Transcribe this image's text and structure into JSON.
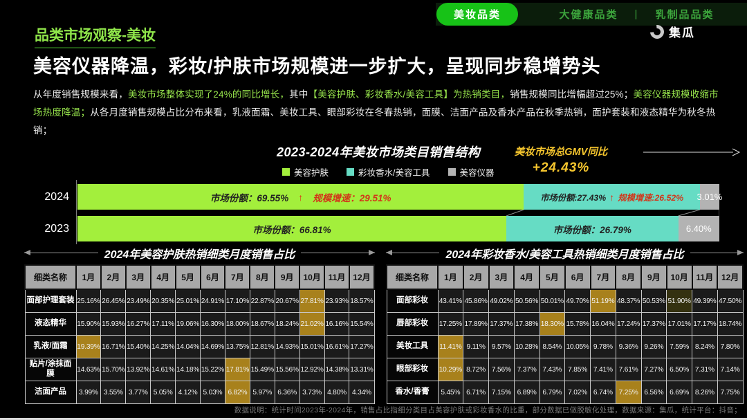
{
  "nav": {
    "active_tab": "美妆品类",
    "tabs": [
      "大健康品类",
      "乳制品品类"
    ],
    "separator": "|",
    "logo_text": "集瓜"
  },
  "header": {
    "eyebrow": "品类市场观察-美妆",
    "title": "美容仪器降温，彩妆/护肤市场规模进一步扩大，呈现同步稳增势头"
  },
  "intro": {
    "segments": [
      {
        "text": "从年度销售规模来看，",
        "style": "plain"
      },
      {
        "text": "美妆市场整体实现了24%的同比增长，",
        "style": "highlight"
      },
      {
        "text": "其中",
        "style": "plain"
      },
      {
        "text": "【美容护肤、彩妆香水/美容工具】为热销类目，",
        "style": "highlight"
      },
      {
        "text": "销售规模同比增幅超过25%；",
        "style": "plain"
      },
      {
        "text": "美容仪器规模收缩市场热度降温；",
        "style": "highlight"
      },
      {
        "text": "从各月度销售规模占比分布来看，乳液面霜、美妆工具、眼部彩妆在冬春热销，面膜、洁面产品及香水产品在秋季热销，面护套装和液态精华为秋冬热销；",
        "style": "plain"
      }
    ]
  },
  "chart": {
    "title": "2023-2024年美妆市场类目销售结构",
    "gmv_label": "美妆市场总GMV同比",
    "gmv_value": "+24.43%",
    "colors": {
      "skincare": "#a3ef3c",
      "makeup": "#66dcc4",
      "device": "#b3b3b3"
    },
    "legend": [
      {
        "key": "skincare",
        "label": "美容护肤"
      },
      {
        "key": "makeup",
        "label": "彩妆香水/美容工具"
      },
      {
        "key": "device",
        "label": "美容仪器"
      }
    ],
    "bars": [
      {
        "year": "2024",
        "segments": [
          {
            "key": "skincare",
            "pct": 69.55,
            "share": "市场份额：69.55%",
            "arrow": "↑",
            "growth": "规模增速：29.51%"
          },
          {
            "key": "makeup",
            "pct": 27.43,
            "share": "市场份额:27.43%",
            "arrow": "↑",
            "growth": "规模增速:26.52%"
          },
          {
            "key": "device",
            "pct": 3.01,
            "value": "3.01%"
          }
        ]
      },
      {
        "year": "2023",
        "segments": [
          {
            "key": "skincare",
            "pct": 66.81,
            "share": "市场份额：66.81%"
          },
          {
            "key": "makeup",
            "pct": 26.79,
            "share": "市场份额：26.79%"
          },
          {
            "key": "device",
            "pct": 6.4,
            "value": "6.40%"
          }
        ]
      }
    ]
  },
  "chart_data": [
    {
      "type": "bar",
      "title": "2023-2024年美妆市场类目销售结构",
      "orientation": "horizontal_stacked",
      "categories": [
        "2024",
        "2023"
      ],
      "series": [
        {
          "name": "美容护肤",
          "values": [
            69.55,
            66.81
          ]
        },
        {
          "name": "彩妆香水/美容工具",
          "values": [
            27.43,
            26.79
          ]
        },
        {
          "name": "美容仪器",
          "values": [
            3.01,
            6.4
          ]
        }
      ],
      "value_unit": "% 市场份额",
      "growth_2024": {
        "美容护肤": "29.51%",
        "彩妆香水/美容工具": "26.52%"
      },
      "gmv_yoy": "+24.43%",
      "legend_position": "top",
      "xlim": [
        0,
        100
      ]
    },
    {
      "type": "table",
      "title": "2024年美容护肤热销细类月度销售占比",
      "columns": [
        "细类名称",
        "1月",
        "2月",
        "3月",
        "4月",
        "5月",
        "6月",
        "7月",
        "8月",
        "9月",
        "10月",
        "11月",
        "12月"
      ],
      "rows": [
        {
          "label": "面部护理套装",
          "values": [
            "25.16%",
            "26.45%",
            "23.49%",
            "20.35%",
            "25.01%",
            "24.91%",
            "17.10%",
            "22.87%",
            "20.67%",
            "27.81%",
            "23.93%",
            "18.57%"
          ],
          "hl": {
            "9": "gold"
          }
        },
        {
          "label": "液态精华",
          "values": [
            "15.90%",
            "15.93%",
            "16.27%",
            "17.11%",
            "19.06%",
            "16.30%",
            "18.00%",
            "18.67%",
            "18.24%",
            "21.02%",
            "16.16%",
            "15.54%"
          ],
          "hl": {
            "9": "gold"
          }
        },
        {
          "label": "乳液/面霜",
          "values": [
            "19.39%",
            "16.71%",
            "15.40%",
            "14.25%",
            "14.04%",
            "14.69%",
            "13.75%",
            "12.81%",
            "14.93%",
            "15.01%",
            "16.61%",
            "17.27%"
          ],
          "hl": {
            "0": "gold"
          }
        },
        {
          "label": "贴片/涂抹面膜",
          "values": [
            "14.63%",
            "15.70%",
            "13.92%",
            "14.61%",
            "14.18%",
            "15.22%",
            "17.81%",
            "15.49%",
            "15.56%",
            "12.92%",
            "14.38%",
            "13.31%"
          ],
          "hl": {
            "6": "gold"
          }
        },
        {
          "label": "洁面产品",
          "values": [
            "3.99%",
            "3.55%",
            "3.77%",
            "5.05%",
            "4.12%",
            "5.03%",
            "6.82%",
            "5.97%",
            "6.36%",
            "3.73%",
            "4.80%",
            "4.34%"
          ],
          "hl": {
            "6": "gold"
          }
        }
      ]
    },
    {
      "type": "table",
      "title": "2024年彩妆香水/美容工具热销细类月度销售占比",
      "columns": [
        "细类名称",
        "1月",
        "2月",
        "3月",
        "4月",
        "5月",
        "6月",
        "7月",
        "8月",
        "9月",
        "10月",
        "11月",
        "12月"
      ],
      "rows": [
        {
          "label": "面部彩妆",
          "values": [
            "43.41%",
            "45.86%",
            "49.02%",
            "50.56%",
            "50.01%",
            "49.70%",
            "51.19%",
            "48.37%",
            "50.53%",
            "51.90%",
            "49.39%",
            "47.50%"
          ],
          "hl": {
            "6": "gold",
            "9": "olive"
          }
        },
        {
          "label": "唇部彩妆",
          "values": [
            "17.25%",
            "17.89%",
            "17.37%",
            "17.38%",
            "18.30%",
            "15.78%",
            "16.04%",
            "17.24%",
            "17.37%",
            "17.01%",
            "17.17%",
            "18.74%"
          ],
          "hl": {
            "4": "gold"
          }
        },
        {
          "label": "美妆工具",
          "values": [
            "11.41%",
            "9.11%",
            "9.57%",
            "10.28%",
            "8.54%",
            "10.05%",
            "9.78%",
            "9.36%",
            "9.26%",
            "7.59%",
            "8.24%",
            "7.80%"
          ],
          "hl": {
            "0": "gold"
          }
        },
        {
          "label": "眼部彩妆",
          "values": [
            "10.29%",
            "8.72%",
            "7.56%",
            "7.37%",
            "7.43%",
            "7.85%",
            "7.41%",
            "7.61%",
            "7.27%",
            "6.50%",
            "7.31%",
            "7.14%"
          ],
          "hl": {
            "0": "gold"
          }
        },
        {
          "label": "香水/香膏",
          "values": [
            "5.45%",
            "6.71%",
            "7.15%",
            "6.89%",
            "6.79%",
            "7.02%",
            "6.74%",
            "7.25%",
            "6.56%",
            "6.69%",
            "8.26%",
            "7.75%"
          ],
          "hl": {
            "7": "gold"
          }
        }
      ]
    }
  ],
  "footer": {
    "disclaimer": "数据说明：统计时间2023年-2024年，销售占比指细分类目占美容护肤或彩妆香水的比重，部分数据已做脱敏化处理，数据来源：集瓜，统计平台：抖音；"
  }
}
